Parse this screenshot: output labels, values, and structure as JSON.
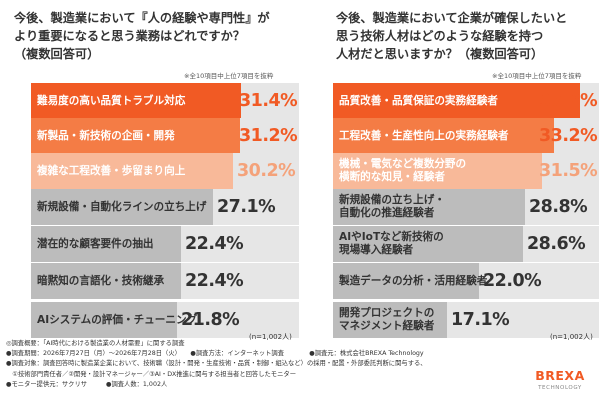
{
  "left_panel": {
    "title_line1": "今後、製造業において『人の経験や専門性』が",
    "title_line2": "より重要になると思う業務はどれですか？",
    "title_line3": "（複数回答可）",
    "note": "※全10項目中上位7項目を抜粋",
    "respondents": "(n=1,002人)"
  },
  "right_panel": {
    "title_line1": "今後、製造業において企業が確保したいと",
    "title_line2": "思う技術人材はどのような経験を持つ",
    "title_line3": "人材だと思いますか？（複数回答可）",
    "note": "※全10項目中上位7項目を抜粋",
    "respondents": "(n=1,002人)"
  },
  "colors": {
    "rank1": "#f15a24",
    "rank2": "#f47c45",
    "rank3": "#f8b999",
    "other": "#bcbcbc",
    "track": "#e6e6e6"
  },
  "chart_data": [
    {
      "type": "bar",
      "orientation": "horizontal",
      "title": "今後、製造業において『人の経験や専門性』がより重要になると思う業務はどれですか？（複数回答可）",
      "unit": "%",
      "xlim": [
        0,
        40
      ],
      "categories": [
        "難易度の高い品質トラブル対応",
        "新製品・新技術の企画・開発",
        "複雑な工程改善・歩留まり向上",
        "新規設備・自動化ラインの立ち上げ",
        "潜在的な顧客要件の抽出",
        "暗黙知の言語化・技術継承",
        "AIシステムの評価・チューニング"
      ],
      "values": [
        31.4,
        31.2,
        30.2,
        27.1,
        22.4,
        22.4,
        21.8
      ],
      "value_labels": [
        "31.4%",
        "31.2%",
        "30.2%",
        "27.1%",
        "22.4%",
        "22.4%",
        "21.8%"
      ]
    },
    {
      "type": "bar",
      "orientation": "horizontal",
      "title": "今後、製造業において企業が確保したいと思う技術人材はどのような経験を持つ人材だと思いますか？（複数回答可）",
      "unit": "%",
      "xlim": [
        0,
        40
      ],
      "categories": [
        "品質改善・品質保証の実務経験者",
        "工程改善・生産性向上の実務経験者",
        "機械・電気など複数分野の\n横断的な知見・経験者",
        "新規設備の立ち上げ・\n自動化の推進経験者",
        "AIやIoTなど新技術の\n現場導入経験者",
        "製造データの分析・活用経験者",
        "開発プロジェクトの\nマネジメント経験者"
      ],
      "values": [
        37.2,
        33.2,
        31.5,
        28.8,
        28.6,
        22.0,
        17.1
      ],
      "value_labels": [
        "37.2%",
        "33.2%",
        "31.5%",
        "28.8%",
        "28.6%",
        "22.0%",
        "17.1%"
      ]
    }
  ],
  "footer": {
    "line1": "◎調査概要：「AI時代における製造業の人材需要」に関する調査",
    "line2": "●調査期間：2026年7月27日（月）〜2026年7月28日（火）　　●調査方法：インターネット調査　　　　●調査元：株式会社BREXA Technology",
    "line3": "●調査対象：調査回答時に製造業企業において、技術職（設計・開発・生産技術・品質・制御・組込など）の採用・配置・外部委託判断に関与する、",
    "line4": "　①技術部門責任者／②開発・設計マネージャー／③AI・DX推進に関与する担当者と回答したモニター",
    "line5": "●モニター提供元：サクリサ　　　●調査人数：1,002人"
  },
  "logo": {
    "name": "BREXA",
    "sub": "TECHNOLOGY",
    "color": "#f15a24"
  }
}
